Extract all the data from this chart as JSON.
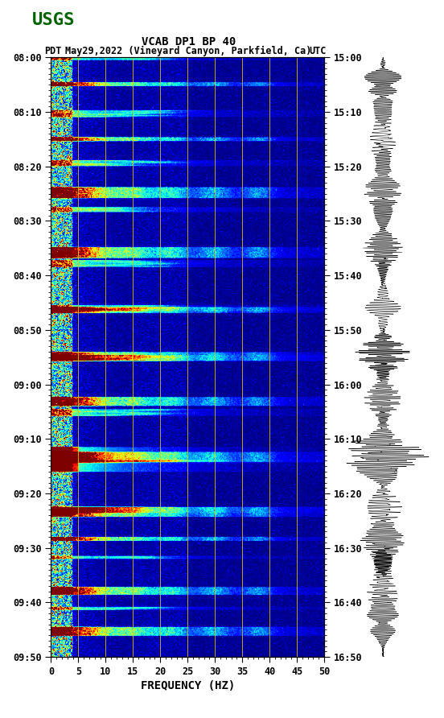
{
  "title_line1": "VCAB DP1 BP 40",
  "title_line2_pdt": "PDT",
  "title_line2_date": "May29,2022 (Vineyard Canyon, Parkfield, Ca)",
  "title_line2_utc": "UTC",
  "xlabel": "FREQUENCY (HZ)",
  "freq_min": 0,
  "freq_max": 50,
  "y_ticks_pdt": [
    "08:00",
    "08:10",
    "08:20",
    "08:30",
    "08:40",
    "08:50",
    "09:00",
    "09:10",
    "09:20",
    "09:30",
    "09:40",
    "09:50"
  ],
  "y_ticks_utc": [
    "15:00",
    "15:10",
    "15:20",
    "15:30",
    "15:40",
    "15:50",
    "16:00",
    "16:10",
    "16:20",
    "16:30",
    "16:40",
    "16:50"
  ],
  "x_ticks": [
    0,
    5,
    10,
    15,
    20,
    25,
    30,
    35,
    40,
    45,
    50
  ],
  "vertical_grid_freqs": [
    5,
    10,
    15,
    20,
    25,
    30,
    35,
    40,
    45
  ],
  "fig_width": 5.52,
  "fig_height": 8.92,
  "bg_color": "#ffffff",
  "spectrogram_colormap": "jet",
  "usgs_logo_color": "#006400",
  "n_times": 600,
  "n_freqs": 300
}
